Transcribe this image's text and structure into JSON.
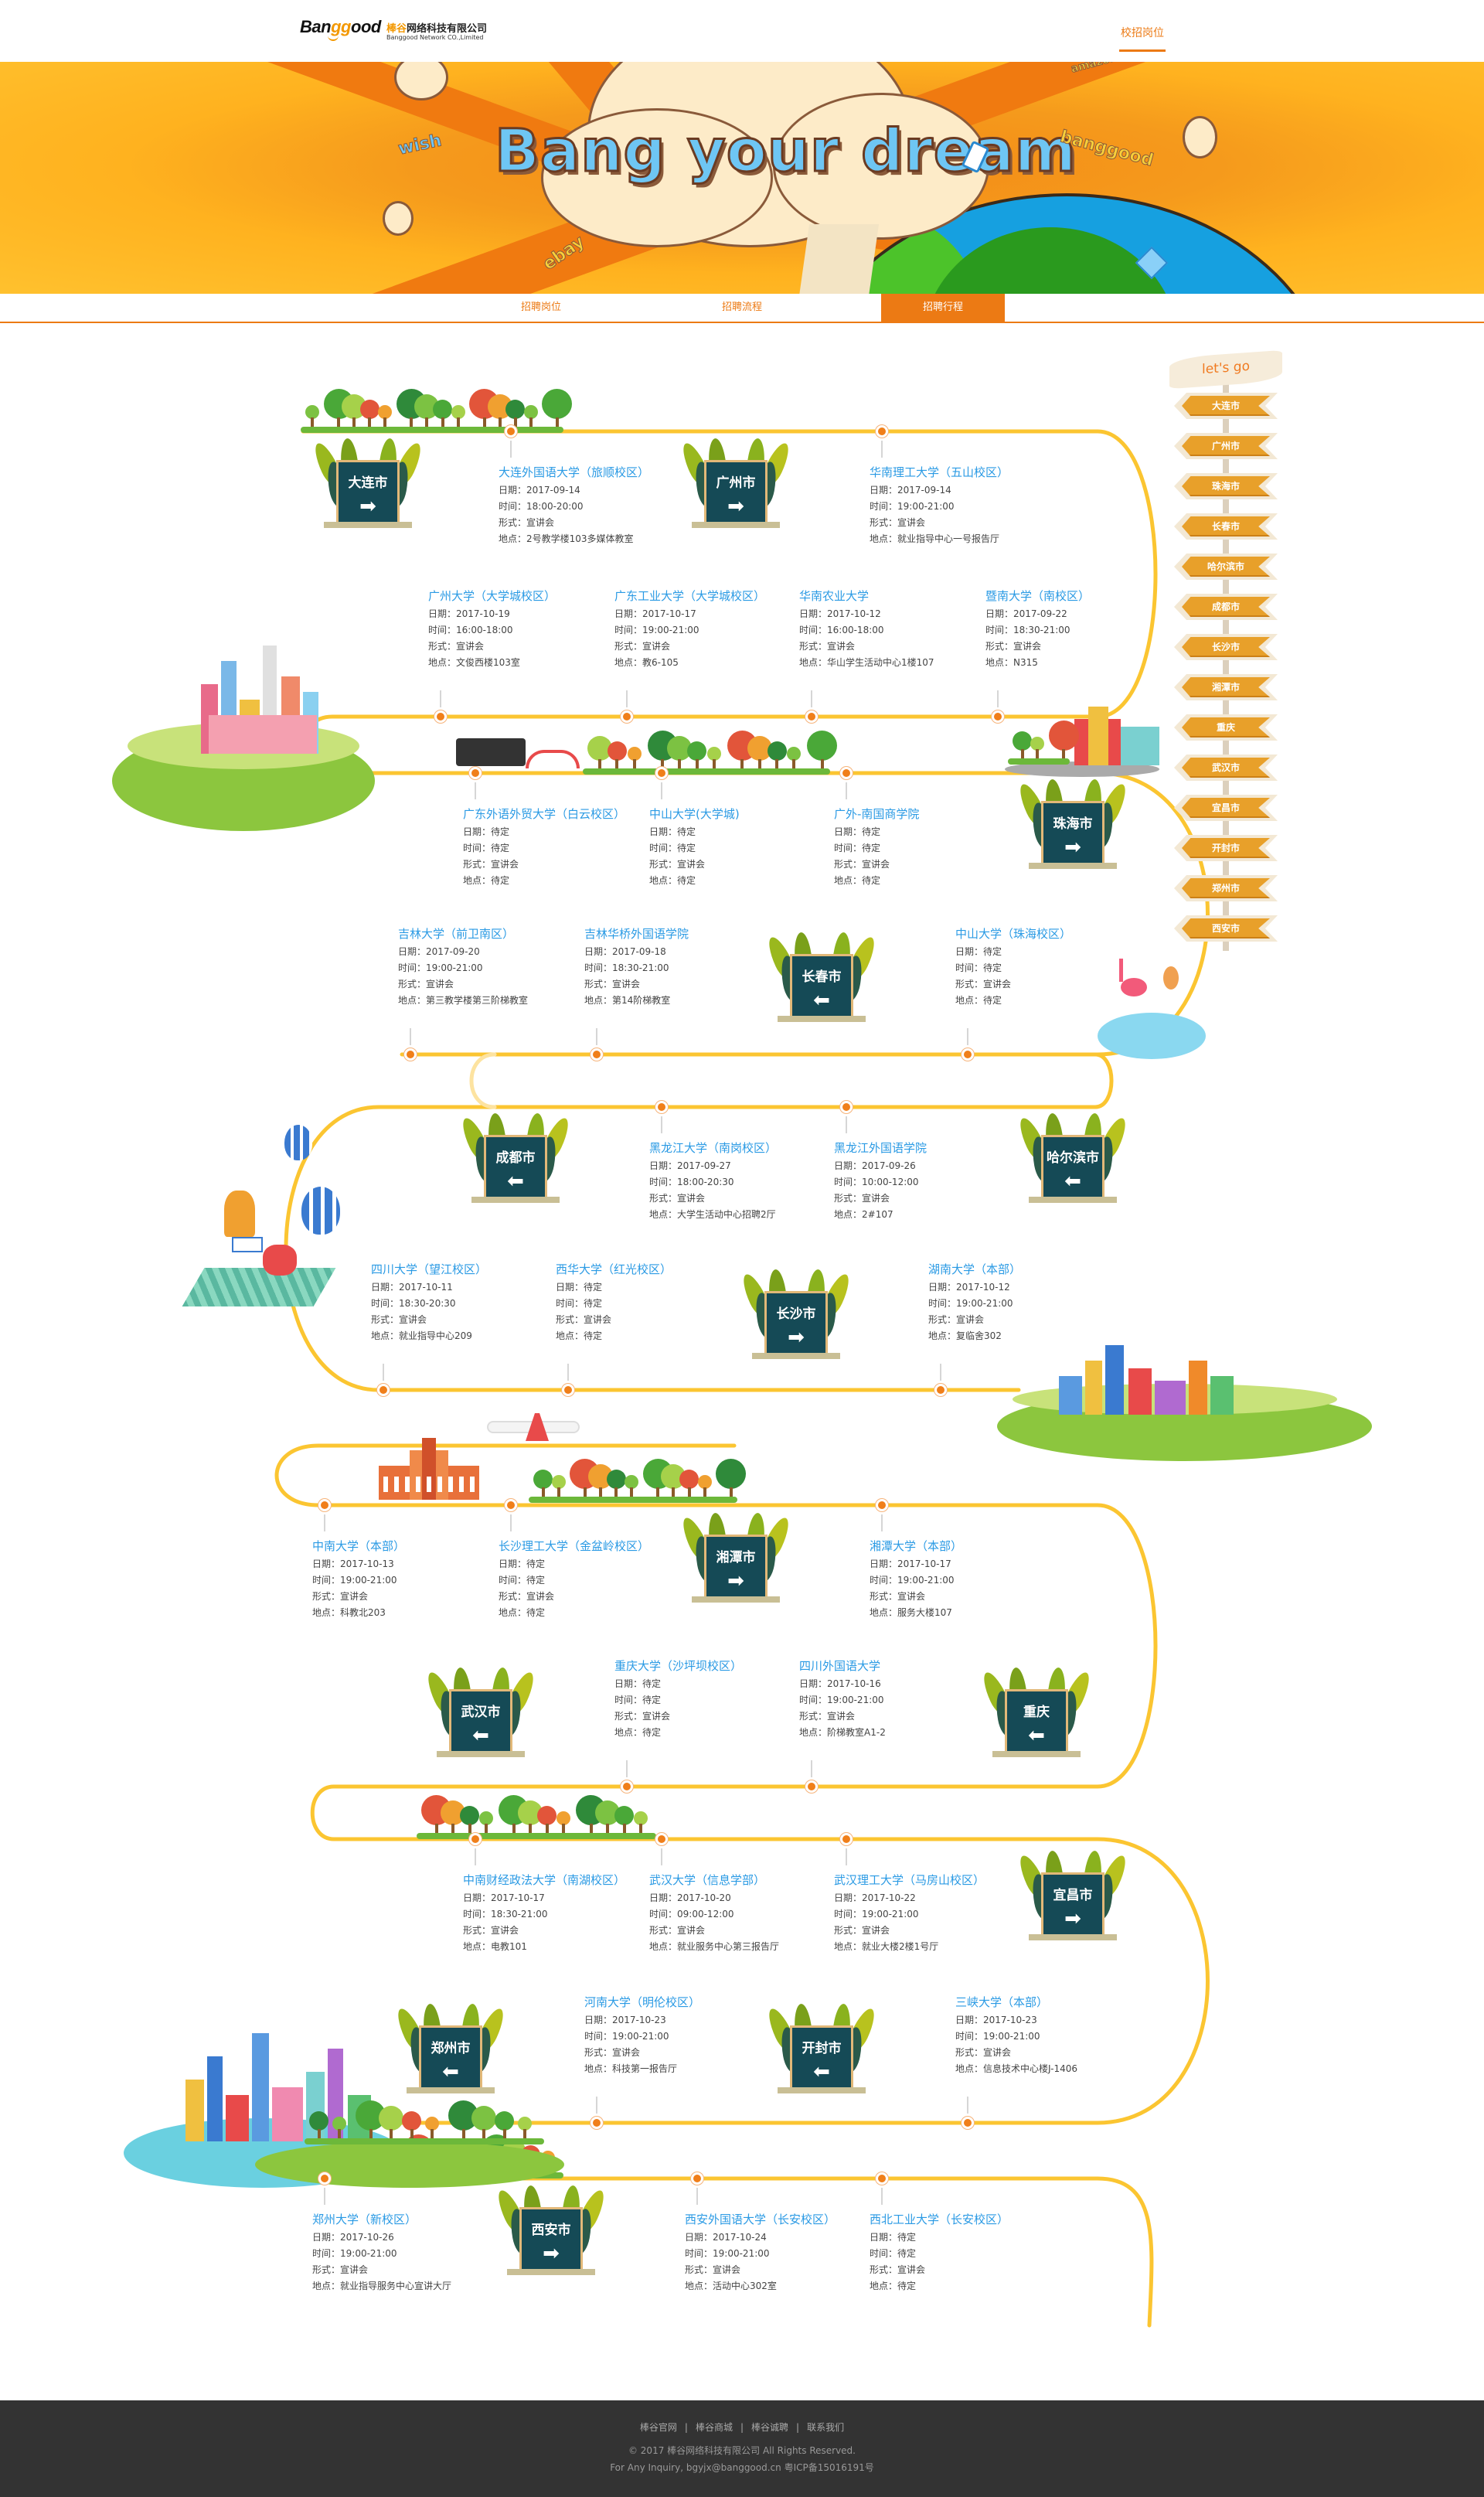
{
  "header": {
    "logo_brand": "Banggood",
    "company_cn_highlight": "棒谷",
    "company_cn_rest": "网络科技有限公司",
    "company_en": "Banggood Network CO.,Limited",
    "nav_link": "校招岗位"
  },
  "banner": {
    "title": "Bang your dream",
    "brands": [
      "wish",
      "ebay",
      "banggood",
      "amazon"
    ]
  },
  "tabs": [
    {
      "label": "招聘岗位",
      "active": false
    },
    {
      "label": "招聘流程",
      "active": false
    },
    {
      "label": "招聘行程",
      "active": true
    }
  ],
  "labels": {
    "date": "日期：",
    "time": "时间：",
    "form": "形式：",
    "place": "地点："
  },
  "events": [
    {
      "title": "大连外国语大学（旅顺校区）",
      "date": "2017-09-14",
      "time": "18:00-20:00",
      "form": "宣讲会",
      "place": "2号教学楼103多媒体教室"
    },
    {
      "title": "华南理工大学（五山校区）",
      "date": "2017-09-14",
      "time": "19:00-21:00",
      "form": "宣讲会",
      "place": "就业指导中心一号报告厅"
    },
    {
      "title": "广州大学（大学城校区）",
      "date": "2017-10-19",
      "time": "16:00-18:00",
      "form": "宣讲会",
      "place": "文俊西楼103室"
    },
    {
      "title": "广东工业大学（大学城校区）",
      "date": "2017-10-17",
      "time": "19:00-21:00",
      "form": "宣讲会",
      "place": "教6-105"
    },
    {
      "title": "华南农业大学",
      "date": "2017-10-12",
      "time": "16:00-18:00",
      "form": "宣讲会",
      "place": "华山学生活动中心1楼107"
    },
    {
      "title": "暨南大学（南校区）",
      "date": "2017-09-22",
      "time": "18:30-21:00",
      "form": "宣讲会",
      "place": "N315"
    },
    {
      "title": "广东外语外贸大学（白云校区）",
      "date": "待定",
      "time": "待定",
      "form": "宣讲会",
      "place": "待定"
    },
    {
      "title": "中山大学(大学城)",
      "date": "待定",
      "time": "待定",
      "form": "宣讲会",
      "place": "待定"
    },
    {
      "title": "广外-南国商学院",
      "date": "待定",
      "time": "待定",
      "form": "宣讲会",
      "place": "待定"
    },
    {
      "title": "吉林大学（前卫南区）",
      "date": "2017-09-20",
      "time": "19:00-21:00",
      "form": "宣讲会",
      "place": "第三教学楼第三阶梯教室"
    },
    {
      "title": "吉林华桥外国语学院",
      "date": "2017-09-18",
      "time": "18:30-21:00",
      "form": "宣讲会",
      "place": "第14阶梯教室"
    },
    {
      "title": "中山大学（珠海校区）",
      "date": "待定",
      "time": "待定",
      "form": "宣讲会",
      "place": "待定"
    },
    {
      "title": "黑龙江大学（南岗校区）",
      "date": "2017-09-27",
      "time": "18:00-20:30",
      "form": "宣讲会",
      "place": "大学生活动中心招聘2厅"
    },
    {
      "title": "黑龙江外国语学院",
      "date": "2017-09-26",
      "time": "10:00-12:00",
      "form": "宣讲会",
      "place": "2#107"
    },
    {
      "title": "四川大学（望江校区）",
      "date": "2017-10-11",
      "time": "18:30-20:30",
      "form": "宣讲会",
      "place": "就业指导中心209"
    },
    {
      "title": "西华大学（红光校区）",
      "date": "待定",
      "time": "待定",
      "form": "宣讲会",
      "place": "待定"
    },
    {
      "title": "湖南大学（本部）",
      "date": "2017-10-12",
      "time": "19:00-21:00",
      "form": "宣讲会",
      "place": "复临舍302"
    },
    {
      "title": "中南大学（本部）",
      "date": "2017-10-13",
      "time": "19:00-21:00",
      "form": "宣讲会",
      "place": "科教北203"
    },
    {
      "title": "长沙理工大学（金盆岭校区）",
      "date": "待定",
      "time": "待定",
      "form": "宣讲会",
      "place": "待定"
    },
    {
      "title": "湘潭大学（本部）",
      "date": "2017-10-17",
      "time": "19:00-21:00",
      "form": "宣讲会",
      "place": "服务大楼107"
    },
    {
      "title": "重庆大学（沙坪坝校区）",
      "date": "待定",
      "time": "待定",
      "form": "宣讲会",
      "place": "待定"
    },
    {
      "title": "四川外国语大学",
      "date": "2017-10-16",
      "time": "19:00-21:00",
      "form": "宣讲会",
      "place": "阶梯教室A1-2"
    },
    {
      "title": "中南财经政法大学（南湖校区）",
      "date": "2017-10-17",
      "time": "18:30-21:00",
      "form": "宣讲会",
      "place": "电教101"
    },
    {
      "title": "武汉大学（信息学部）",
      "date": "2017-10-20",
      "time": "09:00-12:00",
      "form": "宣讲会",
      "place": "就业服务中心第三报告厅"
    },
    {
      "title": "武汉理工大学（马房山校区）",
      "date": "2017-10-22",
      "time": "19:00-21:00",
      "form": "宣讲会",
      "place": "就业大楼2楼1号厅"
    },
    {
      "title": "河南大学（明伦校区）",
      "date": "2017-10-23",
      "time": "19:00-21:00",
      "form": "宣讲会",
      "place": "科技第一报告厅"
    },
    {
      "title": "三峡大学（本部）",
      "date": "2017-10-23",
      "time": "19:00-21:00",
      "form": "宣讲会",
      "place": "信息技术中心楼J-1406"
    },
    {
      "title": "郑州大学（新校区）",
      "date": "2017-10-26",
      "time": "19:00-21:00",
      "form": "宣讲会",
      "place": "就业指导服务中心宣讲大厅"
    },
    {
      "title": "西安外国语大学（长安校区）",
      "date": "2017-10-24",
      "time": "19:00-21:00",
      "form": "宣讲会",
      "place": "活动中心302室"
    },
    {
      "title": "西北工业大学（长安校区）",
      "date": "待定",
      "time": "待定",
      "form": "宣讲会",
      "place": "待定"
    }
  ],
  "city_signs": [
    {
      "city": "大连市",
      "arrow": "arrow-right-icon"
    },
    {
      "city": "广州市",
      "arrow": "arrow-right-icon"
    },
    {
      "city": "珠海市",
      "arrow": "arrow-right-icon"
    },
    {
      "city": "长春市",
      "arrow": "arrow-left-icon"
    },
    {
      "city": "成都市",
      "arrow": "arrow-left-icon"
    },
    {
      "city": "哈尔滨市",
      "arrow": "arrow-left-icon"
    },
    {
      "city": "长沙市",
      "arrow": "arrow-right-icon"
    },
    {
      "city": "湘潭市",
      "arrow": "arrow-right-icon"
    },
    {
      "city": "武汉市",
      "arrow": "arrow-left-icon"
    },
    {
      "city": "重庆",
      "arrow": "arrow-left-icon"
    },
    {
      "city": "宜昌市",
      "arrow": "arrow-right-icon"
    },
    {
      "city": "郑州市",
      "arrow": "arrow-left-icon"
    },
    {
      "city": "开封市",
      "arrow": "arrow-left-icon"
    },
    {
      "city": "西安市",
      "arrow": "arrow-right-icon"
    }
  ],
  "sidebar": {
    "heading": "let's go",
    "cities": [
      "大连市",
      "广州市",
      "珠海市",
      "长春市",
      "哈尔滨市",
      "成都市",
      "长沙市",
      "湘潭市",
      "重庆",
      "武汉市",
      "宜昌市",
      "开封市",
      "郑州市",
      "西安市"
    ]
  },
  "footer": {
    "links": [
      "棒谷官网",
      "棒谷商城",
      "棒谷诚聘",
      "联系我们"
    ],
    "separator": "|",
    "copyright": "© 2017 棒谷网络科技有限公司 All Rights Reserved.",
    "contact": "For Any Inquiry, bgyjx@banggood.cn 粤ICP备15016191号"
  },
  "colors": {
    "accent": "#ec7a14",
    "track": "#fbc531",
    "title_blue": "#2a9ae4",
    "sign_board": "#154a56",
    "sidebar_sign": "#e8a02a",
    "footer_bg": "#333333"
  }
}
